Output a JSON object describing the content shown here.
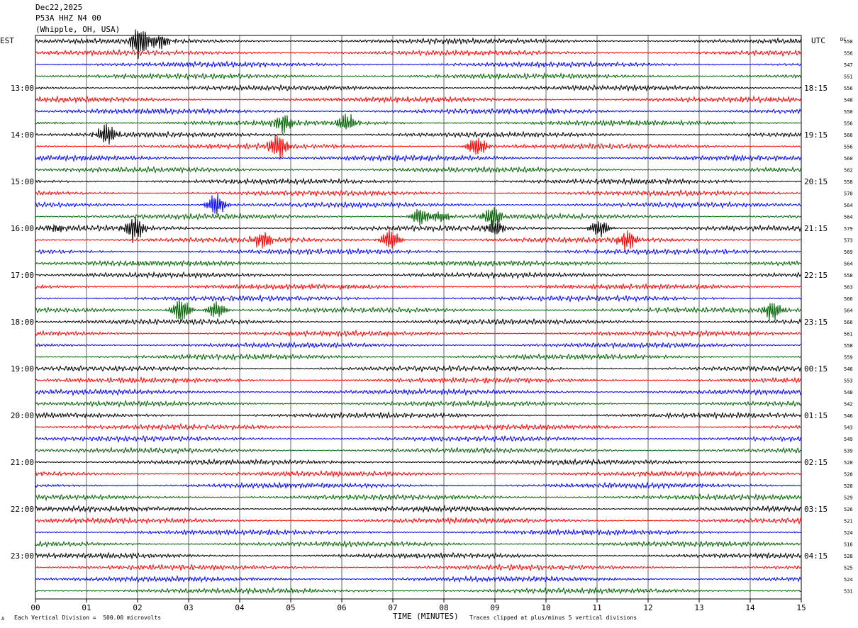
{
  "header": {
    "date": "Dec22,2025",
    "station": "P53A HHZ N4 00",
    "location": "(Whipple, OH, USA)"
  },
  "left_axis_label": "EST",
  "right_axis_label": "UTC",
  "dc_label": "DC",
  "footer": {
    "scale_marker": "A",
    "scale": "Each Vertical Division =  500.00 microvolts",
    "xlabel": "TIME (MINUTES)",
    "clip_note": "Traces clipped at plus/minus 5 vertical divisions"
  },
  "colors": {
    "trace_cycle": [
      "#000000",
      "#ff0000",
      "#0000ff",
      "#006400"
    ],
    "grid": "#000000"
  },
  "chart_data": {
    "type": "line",
    "title": "P53A HHZ N4 00",
    "xlabel": "TIME (MINUTES)",
    "xlim": [
      0,
      15
    ],
    "x_ticks": [
      "00",
      "01",
      "02",
      "03",
      "04",
      "05",
      "06",
      "07",
      "08",
      "09",
      "10",
      "11",
      "12",
      "13",
      "14",
      "15"
    ],
    "hour_labels_est": [
      "13:00",
      "14:00",
      "15:00",
      "16:00",
      "17:00",
      "18:00",
      "19:00",
      "20:00",
      "21:00",
      "22:00",
      "23:00"
    ],
    "hour_labels_utc": [
      "18:15",
      "19:15",
      "20:15",
      "21:15",
      "22:15",
      "23:15",
      "00:15",
      "01:15",
      "02:15",
      "03:15",
      "04:15"
    ],
    "dc_offsets": [
      550,
      556,
      547,
      551,
      556,
      548,
      550,
      556,
      566,
      556,
      560,
      562,
      558,
      570,
      564,
      564,
      579,
      573,
      569,
      564,
      558,
      563,
      566,
      564,
      566,
      561,
      558,
      559,
      546,
      553,
      548,
      542,
      546,
      543,
      549,
      539,
      528,
      528,
      528,
      529,
      526,
      521,
      524,
      516,
      528,
      525,
      524,
      531
    ],
    "events": [
      {
        "trace": 0,
        "minute": 2.05,
        "amplitude": 3.5
      },
      {
        "trace": 0,
        "minute": 2.45,
        "amplitude": 1.5
      },
      {
        "trace": 7,
        "minute": 4.85,
        "amplitude": 2.0
      },
      {
        "trace": 7,
        "minute": 6.1,
        "amplitude": 2.0
      },
      {
        "trace": 8,
        "minute": 1.4,
        "amplitude": 2.5
      },
      {
        "trace": 9,
        "minute": 4.75,
        "amplitude": 3.0
      },
      {
        "trace": 9,
        "minute": 8.65,
        "amplitude": 2.5
      },
      {
        "trace": 14,
        "minute": 3.55,
        "amplitude": 2.5
      },
      {
        "trace": 15,
        "minute": 7.55,
        "amplitude": 2.0
      },
      {
        "trace": 15,
        "minute": 7.95,
        "amplitude": 1.2
      },
      {
        "trace": 15,
        "minute": 8.95,
        "amplitude": 2.5
      },
      {
        "trace": 16,
        "minute": 0.4,
        "amplitude": 1.0
      },
      {
        "trace": 16,
        "minute": 1.95,
        "amplitude": 2.8
      },
      {
        "trace": 16,
        "minute": 9.0,
        "amplitude": 1.8
      },
      {
        "trace": 16,
        "minute": 11.05,
        "amplitude": 2.0
      },
      {
        "trace": 17,
        "minute": 4.45,
        "amplitude": 2.0
      },
      {
        "trace": 17,
        "minute": 6.95,
        "amplitude": 2.2
      },
      {
        "trace": 17,
        "minute": 11.6,
        "amplitude": 2.2
      },
      {
        "trace": 23,
        "minute": 2.85,
        "amplitude": 3.0
      },
      {
        "trace": 23,
        "minute": 3.55,
        "amplitude": 1.8
      },
      {
        "trace": 23,
        "minute": 14.45,
        "amplitude": 2.2
      }
    ]
  }
}
